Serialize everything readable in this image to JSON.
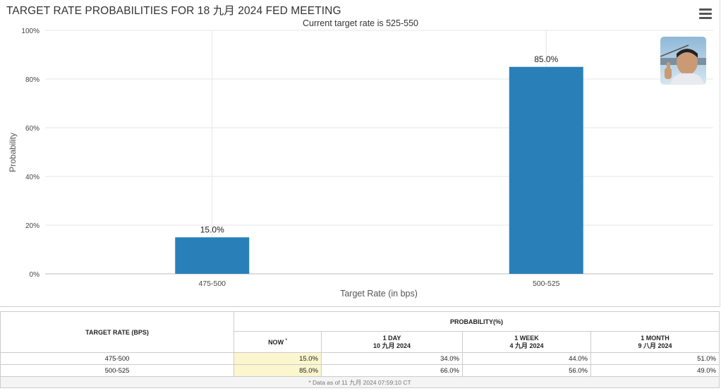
{
  "chart_title": "TARGET RATE PROBABILITIES FOR 18 九月 2024 FED MEETING",
  "chart_data": {
    "type": "bar",
    "title": "TARGET RATE PROBABILITIES FOR 18 九月 2024 FED MEETING",
    "subtitle": "Current target rate is 525-550",
    "categories": [
      "475-500",
      "500-525"
    ],
    "values": [
      15.0,
      85.0
    ],
    "data_labels": [
      "15.0%",
      "85.0%"
    ],
    "xlabel": "Target Rate (in bps)",
    "ylabel": "Probability",
    "ylim": [
      0,
      100
    ],
    "yticks": [
      "0%",
      "20%",
      "40%",
      "60%",
      "80%",
      "100%"
    ],
    "grid": true,
    "color": "#2980b9"
  },
  "menu_icon": "hamburger-menu-icon",
  "photo_icon": "user-photo",
  "table": {
    "header_rate": "TARGET RATE (BPS)",
    "header_probability": "PROBABILITY(%)",
    "columns": [
      {
        "line1": "NOW",
        "line2": "",
        "marker": "*"
      },
      {
        "line1": "1 DAY",
        "line2": "10 九月 2024"
      },
      {
        "line1": "1 WEEK",
        "line2": "4 九月 2024"
      },
      {
        "line1": "1 MONTH",
        "line2": "9 八月 2024"
      }
    ],
    "rows": [
      {
        "rate": "475-500",
        "now": "15.0%",
        "day": "34.0%",
        "week": "44.0%",
        "month": "51.0%"
      },
      {
        "rate": "500-525",
        "now": "85.0%",
        "day": "66.0%",
        "week": "56.0%",
        "month": "49.0%"
      }
    ],
    "note": "* Data as of 11 九月 2024 07:59:10 CT"
  }
}
